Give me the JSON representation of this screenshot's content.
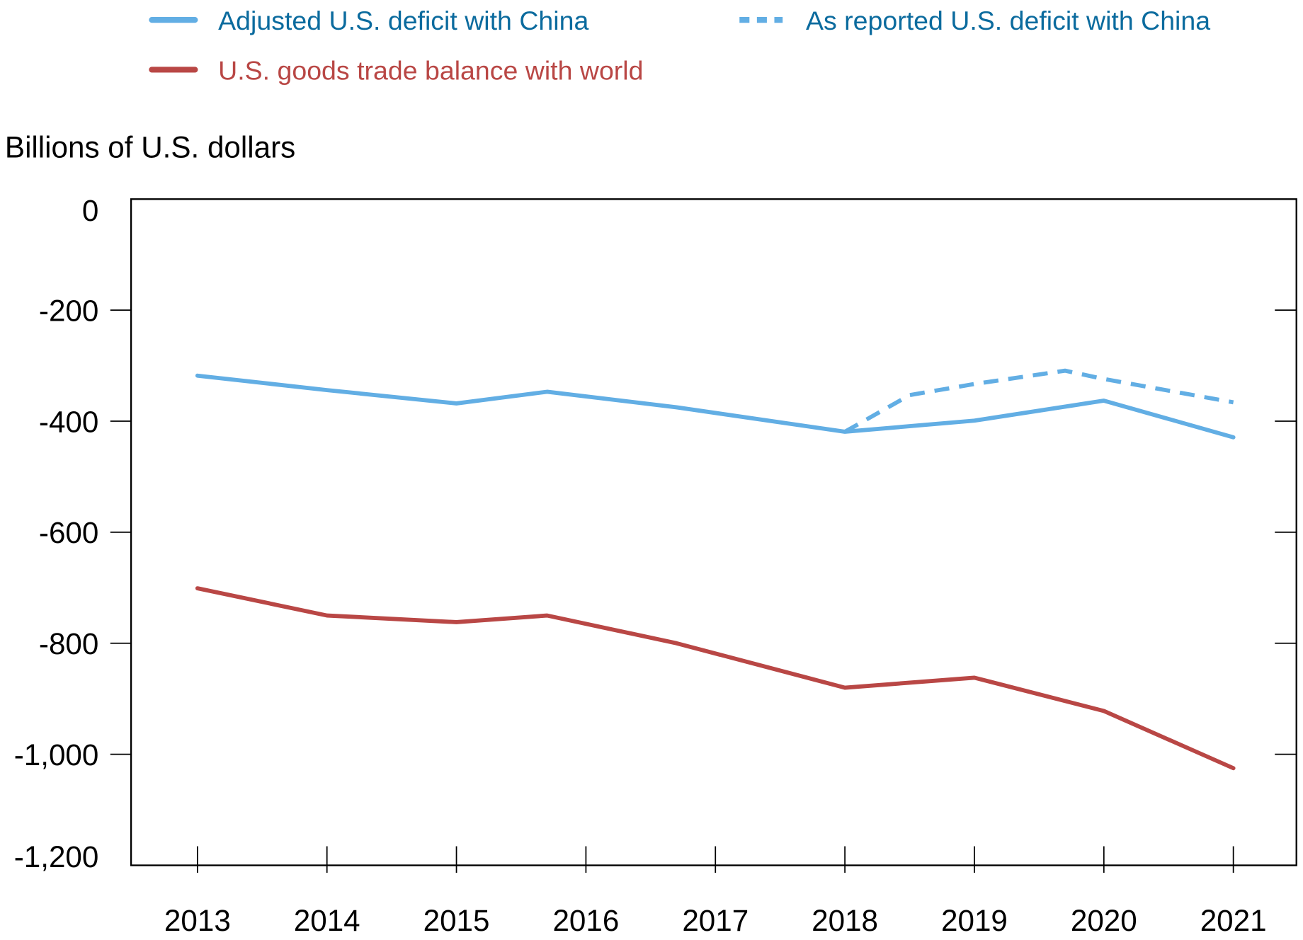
{
  "chart_data": {
    "type": "line",
    "title": "",
    "ylabel": "Billions of U.S. dollars",
    "xlabel": "",
    "ylim": [
      -1200,
      0
    ],
    "yticks": [
      0,
      -200,
      -400,
      -600,
      -800,
      -1000,
      -1200
    ],
    "ytick_labels": [
      "0",
      "-200",
      "-400",
      "-600",
      "-800",
      "-1,000",
      "-1,200"
    ],
    "xlim": [
      2012.5,
      2021.5
    ],
    "xticks": [
      2013,
      2014,
      2015,
      2016,
      2017,
      2018,
      2019,
      2020,
      2021
    ],
    "xtick_labels": [
      "2013",
      "2014",
      "2015",
      "2016",
      "2017",
      "2018",
      "2019",
      "2020",
      "2021"
    ],
    "grid": false,
    "legend_placement": "top",
    "series": [
      {
        "name": "Adjusted U.S. deficit with China",
        "color": "#62AEE4",
        "text_color": "#0B6B9E",
        "style": "solid",
        "x": [
          2013,
          2014,
          2015,
          2015.7,
          2016.7,
          2018,
          2019,
          2020,
          2021
        ],
        "values": [
          -318,
          -344,
          -368,
          -347,
          -375,
          -419,
          -399,
          -363,
          -429
        ]
      },
      {
        "name": "As reported U.S. deficit with China",
        "color": "#62AEE4",
        "text_color": "#0B6B9E",
        "style": "dashed",
        "x": [
          2018,
          2018.5,
          2019,
          2019.7,
          2020,
          2021
        ],
        "values": [
          -419,
          -353,
          -333,
          -309,
          -324,
          -366
        ]
      },
      {
        "name": "U.S. goods trade balance with world",
        "color": "#B94745",
        "text_color": "#B94745",
        "style": "solid",
        "x": [
          2013,
          2014,
          2015,
          2015.7,
          2016.7,
          2018,
          2019,
          2020,
          2021
        ],
        "values": [
          -701,
          -750,
          -762,
          -750,
          -800,
          -880,
          -862,
          -922,
          -1025
        ]
      }
    ]
  }
}
